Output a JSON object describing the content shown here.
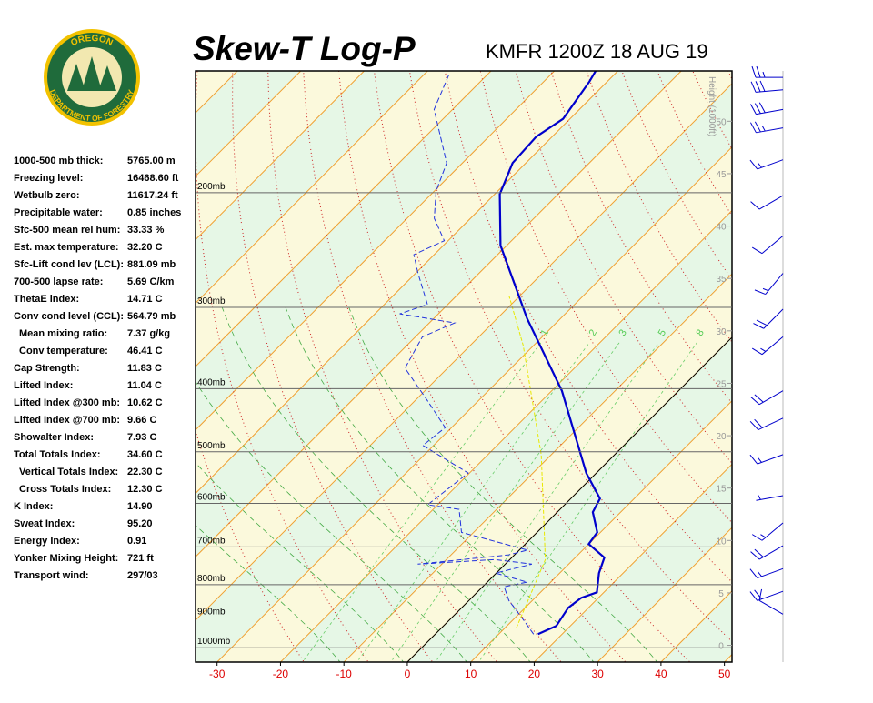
{
  "logo": {
    "top": "OREGON",
    "bottom": "DEPARTMENT OF FORESTRY"
  },
  "stats": [
    [
      "1000-500 mb thick:",
      "5765.00 m"
    ],
    [
      "Freezing level:",
      "16468.60 ft"
    ],
    [
      "Wetbulb zero:",
      "11617.24 ft"
    ],
    [
      "Precipitable water:",
      "0.85 inches"
    ],
    [
      "Sfc-500 mean rel hum:",
      "33.33 %"
    ],
    [
      "Est. max temperature:",
      "32.20 C"
    ],
    [
      "Sfc-Lift cond lev (LCL):",
      "881.09 mb"
    ],
    [
      "700-500 lapse rate:",
      "5.69 C/km"
    ],
    [
      "ThetaE index:",
      "14.71 C"
    ],
    [
      "Conv cond level (CCL):",
      "564.79 mb"
    ],
    [
      "Mean mixing ratio:",
      "7.37 g/kg"
    ],
    [
      "Conv temperature:",
      "46.41 C"
    ],
    [
      "Cap Strength:",
      "11.83 C"
    ],
    [
      "Lifted Index:",
      "11.04 C"
    ],
    [
      "Lifted Index @300 mb:",
      "10.62 C"
    ],
    [
      "Lifted Index @700 mb:",
      "9.66 C"
    ],
    [
      "Showalter Index:",
      "7.93 C"
    ],
    [
      "Total Totals Index:",
      "34.60 C"
    ],
    [
      "Vertical Totals Index:",
      "22.30 C"
    ],
    [
      "Cross Totals Index:",
      "12.30 C"
    ],
    [
      "K Index:",
      "14.90"
    ],
    [
      "Sweat Index:",
      "95.20"
    ],
    [
      "Energy Index:",
      "0.91"
    ],
    [
      "Yonker Mixing Height:",
      "721 ft"
    ],
    [
      "Transport wind:",
      "297/03"
    ]
  ],
  "chart_data": {
    "type": "skewt",
    "title": "Skew-T Log-P",
    "subtitle": "KMFR 1200Z 18 AUG 19",
    "xlim": [
      -33.4,
      51.2
    ],
    "xticks": [
      -30,
      -20,
      -10,
      0,
      10,
      20,
      30,
      40,
      50
    ],
    "ylim": [
      1052,
      130
    ],
    "log_y": true,
    "yticks": [
      {
        "value": 1000,
        "label": "1000mb"
      },
      {
        "value": 900,
        "label": "900mb"
      },
      {
        "value": 800,
        "label": "800mb"
      },
      {
        "value": 700,
        "label": "700mb"
      },
      {
        "value": 600,
        "label": "600mb"
      },
      {
        "value": 500,
        "label": "500mb"
      },
      {
        "value": 400,
        "label": "400mb"
      },
      {
        "value": 300,
        "label": "300mb"
      },
      {
        "value": 200,
        "label": "200mb"
      }
    ],
    "height_label": "Height (1000ft)",
    "height_lim": [
      -1.6,
      54.8
    ],
    "height_ticks": [
      0,
      5,
      10,
      15,
      20,
      25,
      30,
      35,
      40,
      45,
      50
    ],
    "mixing_ratios": [
      1,
      2,
      3,
      5,
      8
    ],
    "series": [
      {
        "color": "#0000cc",
        "pressure": [
          953,
          926,
          868,
          838,
          822,
          768,
          727,
          693,
          665,
          619,
          590,
          539,
          403,
          312,
          241,
          201,
          180,
          164,
          154,
          135,
          130
        ],
        "values": [
          16.2,
          17.8,
          16.8,
          17.3,
          18.9,
          16.2,
          14.6,
          10.0,
          9.5,
          5.6,
          4.6,
          -1.6,
          -18.4,
          -35.3,
          -51.0,
          -59.2,
          -62.1,
          -62.5,
          -61.1,
          -62.8,
          -63.5
        ]
      },
      {
        "color": "#2233dd",
        "pressure": [
          953,
          902,
          846,
          806,
          793,
          768,
          744,
          732,
          744,
          720,
          708,
          665,
          613,
          603,
          539,
          489,
          459,
          417,
          372,
          333,
          317,
          307,
          297,
          266,
          249,
          237,
          219,
          199,
          180,
          149,
          131
        ],
        "values": [
          15.5,
          11.3,
          6.3,
          3.4,
          6.3,
          -0.1,
          4.2,
          -2.3,
          -13.8,
          -0.9,
          1.3,
          -11.9,
          -15.9,
          -21.6,
          -20.2,
          -31.7,
          -31.0,
          -38.1,
          -46.7,
          -48.9,
          -46.0,
          -56.1,
          -53.2,
          -59.6,
          -63.2,
          -60.6,
          -65.7,
          -69.7,
          -72.5,
          -82.9,
          -86.2
        ]
      },
      {
        "color": "#e8e800",
        "pressure": [
          932,
          732,
          505,
          343,
          288
        ],
        "values": [
          11.8,
          5.6,
          -11.6,
          -31.7,
          -41.7
        ]
      }
    ],
    "wind": {
      "pressure": [
        133,
        139,
        149,
        159,
        178,
        202,
        233,
        266,
        302,
        333,
        403,
        444,
        505,
        584,
        643,
        697,
        756,
        819,
        888
      ],
      "direction": [
        270,
        265,
        260,
        260,
        250,
        240,
        230,
        220,
        225,
        230,
        240,
        245,
        250,
        260,
        230,
        240,
        250,
        250,
        300
      ],
      "speed": [
        25,
        30,
        30,
        25,
        15,
        10,
        10,
        15,
        20,
        15,
        20,
        20,
        15,
        5,
        15,
        20,
        15,
        20,
        10
      ]
    }
  }
}
